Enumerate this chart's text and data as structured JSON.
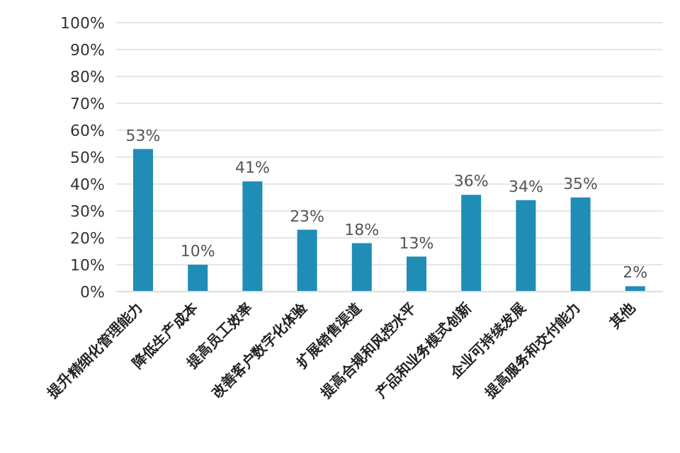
{
  "chart_data": {
    "type": "bar",
    "categories": [
      "提升精细化管理能力",
      "降低生产成本",
      "提高员工效率",
      "改善客户数字化体验",
      "扩展销售渠道",
      "提高合规和风控水平",
      "产品和业务模式创新",
      "企业可持续发展",
      "提高服务和交付能力",
      "其他"
    ],
    "values": [
      53,
      10,
      41,
      23,
      18,
      13,
      36,
      34,
      35,
      2
    ],
    "value_labels": [
      "53%",
      "10%",
      "41%",
      "23%",
      "18%",
      "13%",
      "36%",
      "34%",
      "35%",
      "2%"
    ],
    "color": "#1f8db5",
    "ylim": [
      0,
      100
    ],
    "yticks": [
      {
        "value": 0,
        "label": "0%"
      },
      {
        "value": 10,
        "label": "10%"
      },
      {
        "value": 20,
        "label": "20%"
      },
      {
        "value": 30,
        "label": "30%"
      },
      {
        "value": 40,
        "label": "40%"
      },
      {
        "value": 50,
        "label": "50%"
      },
      {
        "value": 60,
        "label": "60%"
      },
      {
        "value": 70,
        "label": "70%"
      },
      {
        "value": 80,
        "label": "80%"
      },
      {
        "value": 90,
        "label": "90%"
      },
      {
        "value": 100,
        "label": "100%"
      }
    ],
    "grid": "y"
  }
}
